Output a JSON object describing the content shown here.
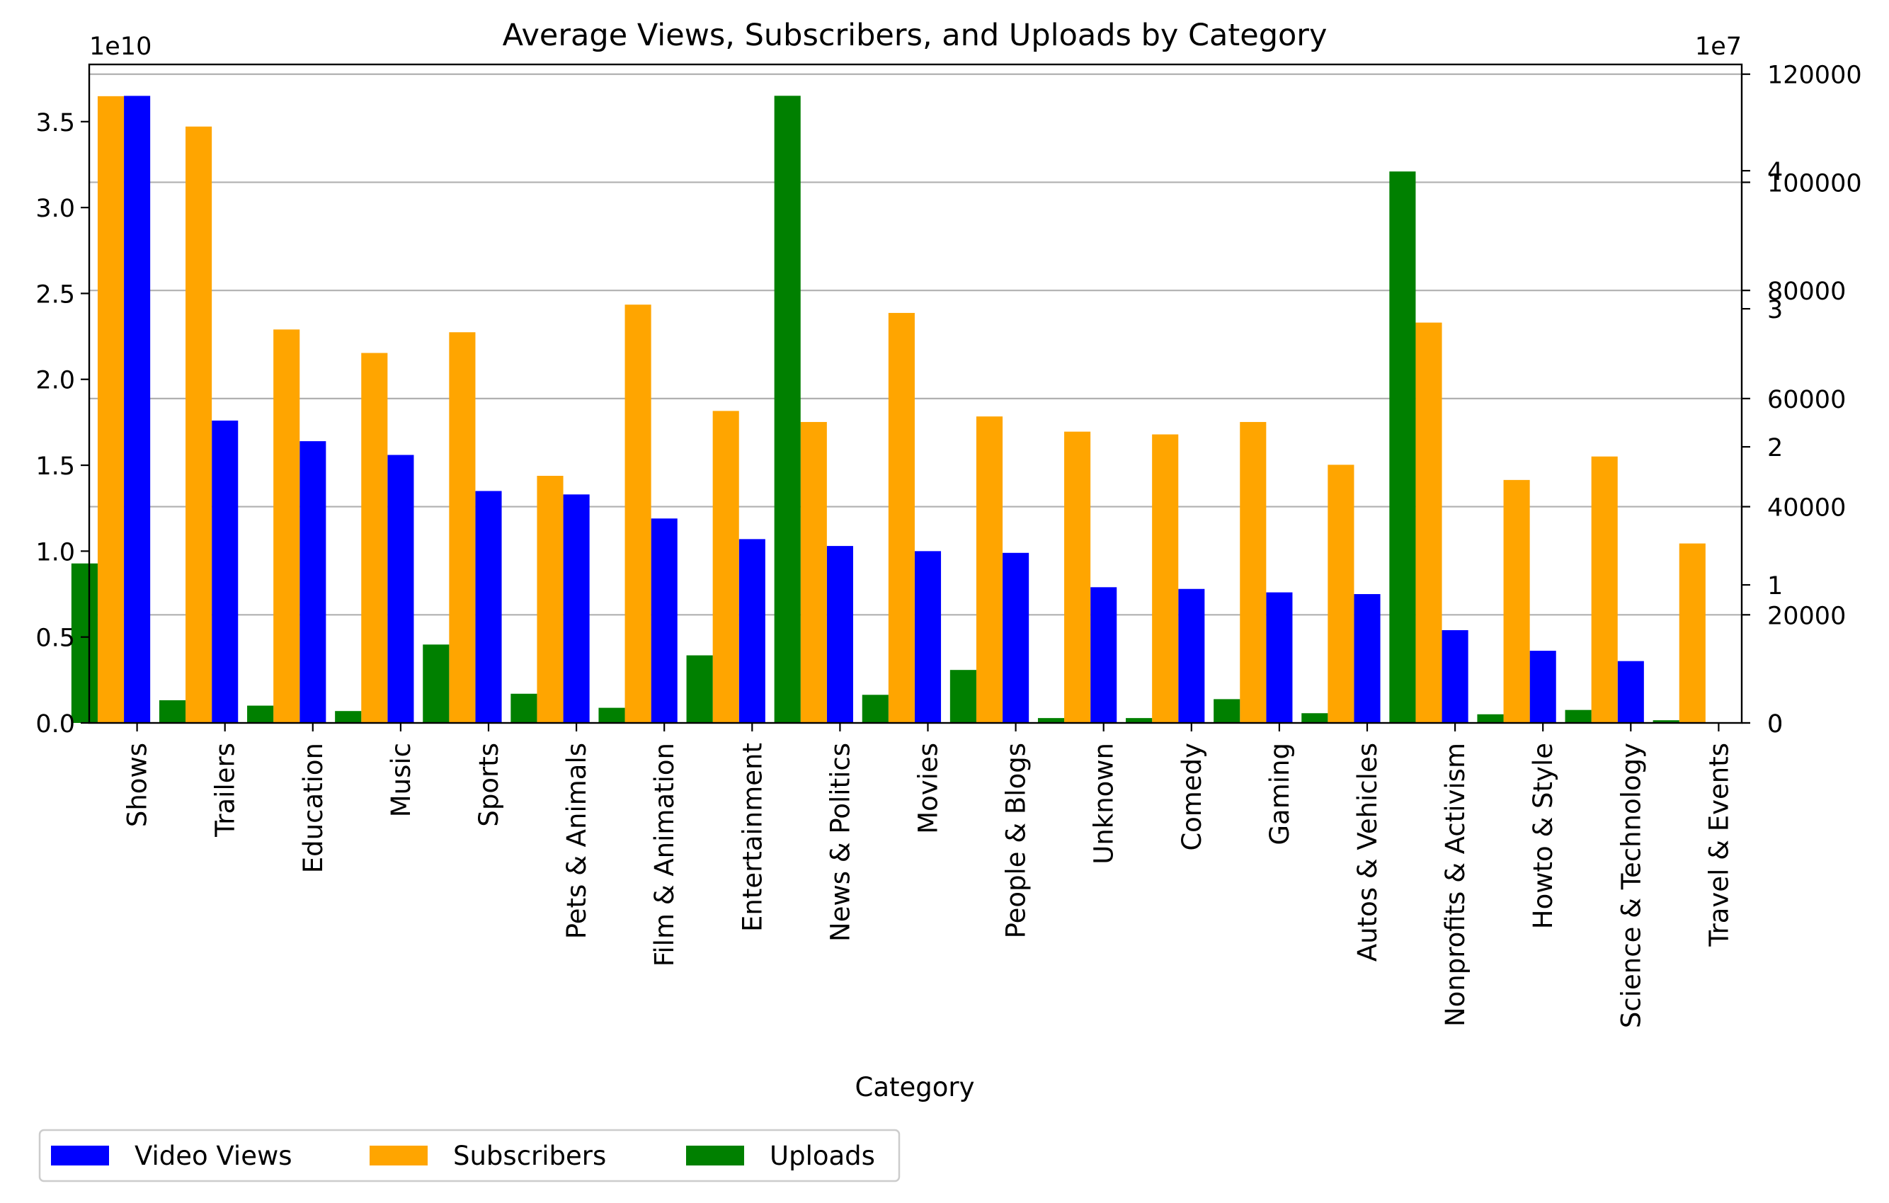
{
  "chart_data": {
    "type": "bar",
    "title": "Average Views, Subscribers, and Uploads by Category",
    "xlabel": "Category",
    "categories": [
      "Shows",
      "Trailers",
      "Education",
      "Music",
      "Sports",
      "Pets & Animals",
      "Film & Animation",
      "Entertainment",
      "News & Politics",
      "Movies",
      "People & Blogs",
      "Unknown",
      "Comedy",
      "Gaming",
      "Autos & Vehicles",
      "Nonprofits & Activism",
      "Howto & Style",
      "Science & Technology",
      "Travel & Events"
    ],
    "series": [
      {
        "name": "Video Views",
        "color": "#0000ff",
        "axis": "left",
        "values": [
          36500000000.0,
          17600000000.0,
          16400000000.0,
          15600000000.0,
          13500000000.0,
          13300000000.0,
          11900000000.0,
          10700000000.0,
          10300000000.0,
          10000000000.0,
          9900000000.0,
          7900000000.0,
          7800000000.0,
          7600000000.0,
          7500000000.0,
          5400000000.0,
          4200000000.0,
          3600000000.0,
          null
        ]
      },
      {
        "name": "Subscribers",
        "color": "#ffa500",
        "axis": "right_subscribers",
        "values": [
          45400000,
          43200000,
          28500000,
          26800000,
          28300000,
          17900000,
          30300000,
          22600000,
          21800000,
          29700000,
          22200000,
          21100000,
          20900000,
          21800000,
          18700000,
          29000000,
          17600000,
          19300000,
          13000000
        ]
      },
      {
        "name": "Uploads",
        "color": "#008000",
        "axis": "right_uploads",
        "values": [
          29500,
          4200,
          3200,
          2200,
          14500,
          5400,
          2800,
          12500,
          116000,
          5200,
          9800,
          900,
          900,
          4400,
          1800,
          102000,
          1600,
          2400,
          500
        ]
      }
    ],
    "axes": {
      "left": {
        "scale_label": "1e10",
        "ylim": [
          0,
          38330000000.0
        ],
        "ticks": [
          {
            "v": 0,
            "label": "0.0"
          },
          {
            "v": 5000000000.0,
            "label": "0.5"
          },
          {
            "v": 10000000000.0,
            "label": "1.0"
          },
          {
            "v": 15000000000.0,
            "label": "1.5"
          },
          {
            "v": 20000000000.0,
            "label": "2.0"
          },
          {
            "v": 25000000000.0,
            "label": "2.5"
          },
          {
            "v": 30000000000.0,
            "label": "3.0"
          },
          {
            "v": 35000000000.0,
            "label": "3.5"
          }
        ]
      },
      "right_subscribers": {
        "scale_label": "1e7",
        "ylim": [
          0,
          47700000.0
        ],
        "ticks": [
          {
            "v": 0,
            "label": "0"
          },
          {
            "v": 10000000.0,
            "label": "1"
          },
          {
            "v": 20000000.0,
            "label": "2"
          },
          {
            "v": 30000000.0,
            "label": "3"
          },
          {
            "v": 40000000.0,
            "label": "4"
          }
        ]
      },
      "right_uploads": {
        "ylim": [
          0,
          121800
        ],
        "ticks": [
          {
            "v": 0,
            "label": "0"
          },
          {
            "v": 20000,
            "label": "20000"
          },
          {
            "v": 40000,
            "label": "40000"
          },
          {
            "v": 60000,
            "label": "60000"
          },
          {
            "v": 80000,
            "label": "80000"
          },
          {
            "v": 100000,
            "label": "100000"
          },
          {
            "v": 120000,
            "label": "120000"
          }
        ]
      }
    },
    "grid": "horizontal, at uploads-axis ticks",
    "legend": {
      "position": "below-left",
      "columns": 3
    }
  }
}
